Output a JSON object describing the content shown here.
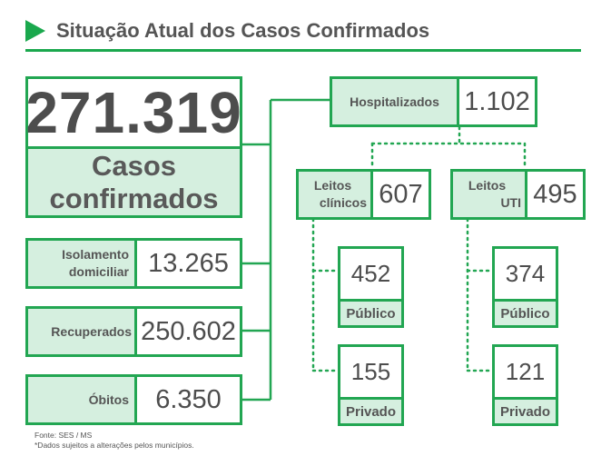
{
  "header": {
    "title": "Situação Atual dos Casos Confirmados"
  },
  "confirmed": {
    "value": "271.319",
    "label_line1": "Casos",
    "label_line2": "confirmados"
  },
  "isolamento": {
    "label_line1": "Isolamento",
    "label_line2": "domiciliar",
    "value": "13.265"
  },
  "recuperados": {
    "label": "Recuperados",
    "value": "250.602"
  },
  "obitos": {
    "label": "Óbitos",
    "value": "6.350"
  },
  "hospitalizados": {
    "label": "Hospitalizados",
    "value": "1.102"
  },
  "leitos_clinicos": {
    "label_line1": "Leitos",
    "label_line2": "clínicos",
    "value": "607",
    "publico": {
      "value": "452",
      "label": "Público"
    },
    "privado": {
      "value": "155",
      "label": "Privado"
    }
  },
  "leitos_uti": {
    "label_line1": "Leitos",
    "label_line2": "UTI",
    "value": "495",
    "publico": {
      "value": "374",
      "label": "Público"
    },
    "privado": {
      "value": "121",
      "label": "Privado"
    }
  },
  "footnotes": {
    "source": "Fonte: SES / MS",
    "note": "*Dados sujeitos a alterações pelos municípios."
  },
  "colors": {
    "accent": "#22a652",
    "label_fill": "#d5efdf",
    "text": "#4d4d4d"
  }
}
